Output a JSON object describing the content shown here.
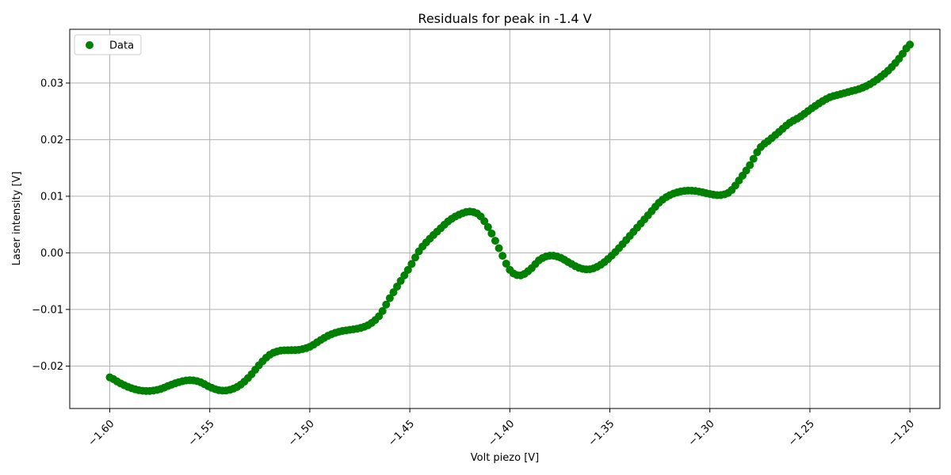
{
  "chart_data": {
    "type": "scatter",
    "title": "Residuals for peak in -1.4 V",
    "xlabel": "Volt piezo [V]",
    "ylabel": "Laser intensity [V]",
    "xlim": [
      -1.62,
      -1.185
    ],
    "ylim": [
      -0.0275,
      0.0395
    ],
    "xticks": [
      -1.6,
      -1.55,
      -1.5,
      -1.45,
      -1.4,
      -1.35,
      -1.3,
      -1.25,
      -1.2
    ],
    "xtick_labels": [
      "−1.60",
      "−1.55",
      "−1.50",
      "−1.45",
      "−1.40",
      "−1.35",
      "−1.30",
      "−1.25",
      "−1.20"
    ],
    "yticks": [
      -0.02,
      -0.01,
      0.0,
      0.01,
      0.02,
      0.03
    ],
    "ytick_labels": [
      "−0.02",
      "−0.01",
      "0.00",
      "0.01",
      "0.02",
      "0.03"
    ],
    "grid": true,
    "legend_position": "upper-left",
    "series": [
      {
        "name": "Data",
        "color": "#008000",
        "x_range": [
          -1.6,
          -1.2
        ],
        "anchor_x": [
          -1.6,
          -1.595,
          -1.59,
          -1.585,
          -1.58,
          -1.575,
          -1.57,
          -1.565,
          -1.56,
          -1.555,
          -1.55,
          -1.545,
          -1.54,
          -1.535,
          -1.53,
          -1.525,
          -1.52,
          -1.515,
          -1.51,
          -1.505,
          -1.5,
          -1.495,
          -1.49,
          -1.485,
          -1.48,
          -1.475,
          -1.47,
          -1.465,
          -1.46,
          -1.455,
          -1.45,
          -1.445,
          -1.44,
          -1.435,
          -1.43,
          -1.425,
          -1.42,
          -1.415,
          -1.41,
          -1.405,
          -1.4,
          -1.395,
          -1.39,
          -1.385,
          -1.38,
          -1.375,
          -1.37,
          -1.365,
          -1.36,
          -1.355,
          -1.35,
          -1.345,
          -1.34,
          -1.335,
          -1.33,
          -1.325,
          -1.32,
          -1.315,
          -1.31,
          -1.305,
          -1.3,
          -1.295,
          -1.29,
          -1.285,
          -1.28,
          -1.275,
          -1.27,
          -1.265,
          -1.26,
          -1.255,
          -1.25,
          -1.245,
          -1.24,
          -1.235,
          -1.23,
          -1.225,
          -1.22,
          -1.215,
          -1.21,
          -1.205,
          -1.2
        ],
        "anchor_y": [
          -0.022,
          -0.023,
          -0.0238,
          -0.0243,
          -0.0244,
          -0.0241,
          -0.0234,
          -0.0228,
          -0.0225,
          -0.0228,
          -0.0237,
          -0.0243,
          -0.0242,
          -0.0234,
          -0.0218,
          -0.0197,
          -0.018,
          -0.0173,
          -0.0172,
          -0.0171,
          -0.0166,
          -0.0155,
          -0.0145,
          -0.0139,
          -0.0136,
          -0.0133,
          -0.0126,
          -0.011,
          -0.008,
          -0.0052,
          -0.0025,
          0.0005,
          0.0025,
          0.0042,
          0.0058,
          0.0068,
          0.0073,
          0.0066,
          0.004,
          0.0005,
          -0.003,
          -0.004,
          -0.003,
          -0.0012,
          -0.0005,
          -0.0008,
          -0.0018,
          -0.0027,
          -0.0029,
          -0.0022,
          -0.0008,
          0.001,
          0.003,
          0.005,
          0.007,
          0.009,
          0.0102,
          0.0108,
          0.011,
          0.0108,
          0.0104,
          0.0102,
          0.0108,
          0.013,
          0.0155,
          0.0185,
          0.02,
          0.0215,
          0.023,
          0.024,
          0.0253,
          0.0265,
          0.0275,
          0.028,
          0.0285,
          0.029,
          0.0298,
          0.031,
          0.0325,
          0.0345,
          0.0368
        ],
        "point_count": 221
      }
    ]
  }
}
